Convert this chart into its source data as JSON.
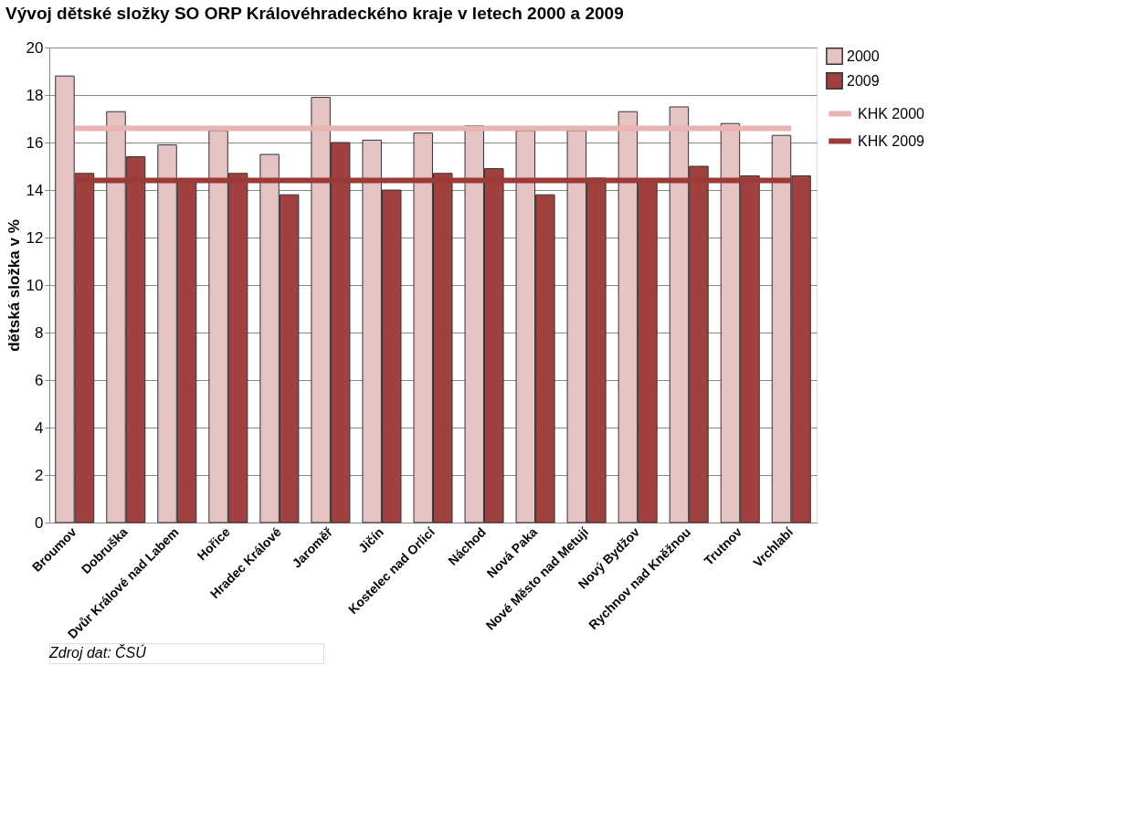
{
  "chart_data": {
    "type": "bar",
    "title": "Vývoj dětské složky SO ORP Královéhradeckého kraje v letech 2000 a 2009",
    "ylabel": "dětská složka v %",
    "categories": [
      "Broumov",
      "Dobruška",
      "Dvůr Králové nad Labem",
      "Hořice",
      "Hradec Králové",
      "Jaroměř",
      "Jičín",
      "Kostelec nad Orlicí",
      "Náchod",
      "Nová Paka",
      "Nové Město nad Metují",
      "Nový Bydžov",
      "Rychnov nad Kněžnou",
      "Trutnov",
      "Vrchlabí"
    ],
    "series": [
      {
        "name": "2000",
        "color": "#e6c3c2",
        "values": [
          18.8,
          17.3,
          15.9,
          16.5,
          15.5,
          17.9,
          16.1,
          16.4,
          16.7,
          16.5,
          16.5,
          17.3,
          17.5,
          16.8,
          16.3
        ]
      },
      {
        "name": "2009",
        "color": "#a0403f",
        "values": [
          14.7,
          15.4,
          14.4,
          14.7,
          13.8,
          16.0,
          14.0,
          14.7,
          14.9,
          13.8,
          14.5,
          14.4,
          15.0,
          14.6,
          14.6
        ]
      }
    ],
    "ref_lines": [
      {
        "axis": "y",
        "value": 16.6,
        "label": "KHK 2000",
        "color": "#e8b4b4"
      },
      {
        "axis": "y",
        "value": 14.4,
        "label": "KHK 2009",
        "color": "#9b3a36"
      }
    ],
    "ylim": [
      0,
      20
    ],
    "yticks": [
      0,
      2,
      4,
      6,
      8,
      10,
      12,
      14,
      16,
      18,
      20
    ],
    "grid": "y",
    "legend": "right",
    "annotations": [
      "Zdroj dat: ČSÚ"
    ]
  }
}
